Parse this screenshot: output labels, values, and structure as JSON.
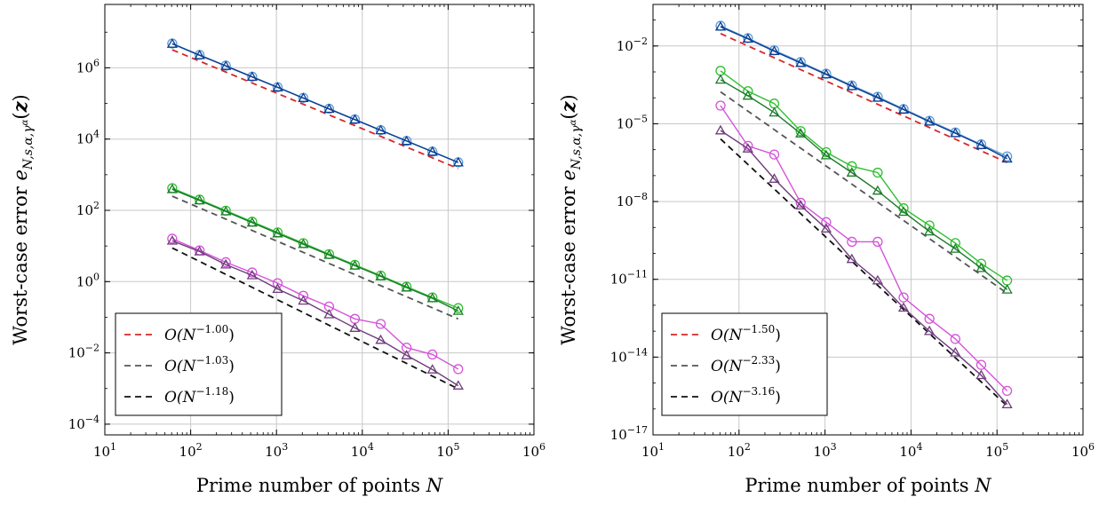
{
  "chart_data": [
    {
      "type": "line",
      "xlabel": "Prime number of points N",
      "ylabel": "Worst-case error e_{N,s,α,γ^α}(z)",
      "x_scale": "log",
      "y_scale": "log",
      "xlim": [
        10,
        1000000
      ],
      "ylim": [
        5e-05,
        60000000
      ],
      "grid": true,
      "legend_position": "bottom-left",
      "xticks": [
        "10^1",
        "10^2",
        "10^3",
        "10^4",
        "10^5",
        "10^6"
      ],
      "yticks": [
        "10^-4",
        "10^-2",
        "10^0",
        "10^2",
        "10^4",
        "10^6"
      ],
      "x": [
        61,
        127,
        257,
        521,
        1031,
        2053,
        4099,
        8191,
        16381,
        32771,
        65537,
        131071
      ],
      "series": [
        {
          "marker": "circle",
          "color": "#5b9bd5",
          "values": [
            4800000,
            2300000,
            1150000,
            565000,
            286000,
            143000,
            71000,
            35700,
            17800,
            8900,
            4450,
            2230
          ]
        },
        {
          "marker": "triangle",
          "color": "#0a3d91",
          "values": [
            4700000,
            2250000,
            1120000,
            555000,
            281000,
            141000,
            70000,
            35200,
            17600,
            8800,
            4400,
            2200
          ]
        },
        {
          "marker": "circle",
          "color": "#2fbf2f",
          "values": [
            420,
            200,
            98,
            48,
            24,
            12,
            5.9,
            2.95,
            1.48,
            0.72,
            0.36,
            0.18
          ]
        },
        {
          "marker": "triangle",
          "color": "#1a7a2a",
          "values": [
            390,
            190,
            93,
            45,
            22.5,
            11.2,
            5.6,
            2.8,
            1.4,
            0.68,
            0.34,
            0.15
          ]
        },
        {
          "marker": "circle",
          "color": "#d453d9",
          "values": [
            16,
            7.5,
            3.5,
            1.8,
            0.9,
            0.4,
            0.2,
            0.09,
            0.065,
            0.014,
            0.009,
            0.0035
          ]
        },
        {
          "marker": "triangle",
          "color": "#6d3d7a",
          "values": [
            14,
            7,
            3,
            1.5,
            0.62,
            0.29,
            0.12,
            0.05,
            0.023,
            0.0085,
            0.0034,
            0.0012
          ]
        }
      ],
      "reference_lines": [
        {
          "label": "O(N^-1.00)",
          "base": "O(N",
          "exp": "−1.00",
          "color": "#d62728",
          "x": [
            61,
            131071
          ],
          "values": [
            3200000,
            1490
          ]
        },
        {
          "label": "O(N^-1.03)",
          "base": "O(N",
          "exp": "−1.03",
          "color": "#555555",
          "x": [
            61,
            131071
          ],
          "values": [
            250,
            0.09
          ]
        },
        {
          "label": "O(N^-1.18)",
          "base": "O(N",
          "exp": "−1.18",
          "color": "#111111",
          "x": [
            61,
            131071
          ],
          "values": [
            8.8,
            0.00098
          ]
        }
      ]
    },
    {
      "type": "line",
      "xlabel": "Prime number of points N",
      "ylabel": "Worst-case error e_{N,s,α,γ^α}(z)",
      "x_scale": "log",
      "y_scale": "log",
      "xlim": [
        10,
        1000000
      ],
      "ylim": [
        1e-17,
        0.4
      ],
      "grid": true,
      "legend_position": "bottom-left",
      "xticks": [
        "10^1",
        "10^2",
        "10^3",
        "10^4",
        "10^5",
        "10^6"
      ],
      "yticks": [
        "10^-17",
        "10^-14",
        "10^-11",
        "10^-8",
        "10^-5",
        "10^-2"
      ],
      "x": [
        61,
        127,
        257,
        521,
        1031,
        2053,
        4099,
        8191,
        16381,
        32771,
        65537,
        131071
      ],
      "series": [
        {
          "marker": "circle",
          "color": "#5b9bd5",
          "values": [
            0.06,
            0.02,
            0.0068,
            0.0024,
            0.00085,
            0.0003,
            0.00011,
            3.7e-05,
            1.3e-05,
            4.6e-06,
            1.6e-06,
            5.5e-07
          ]
        },
        {
          "marker": "triangle",
          "color": "#0a3d91",
          "values": [
            0.055,
            0.019,
            0.0063,
            0.0022,
            0.0008,
            0.00028,
            0.0001,
            3.5e-05,
            1.2e-05,
            4.3e-06,
            1.5e-06,
            4.5e-07
          ]
        },
        {
          "marker": "circle",
          "color": "#2fbf2f",
          "values": [
            0.0011,
            0.00018,
            6e-05,
            5.2e-06,
            8e-07,
            2.3e-07,
            1.3e-07,
            5.5e-09,
            1.2e-09,
            2.5e-10,
            4e-11,
            9e-12
          ]
        },
        {
          "marker": "triangle",
          "color": "#1a7a2a",
          "values": [
            0.0005,
            0.00012,
            2.7e-05,
            4.2e-06,
            6e-07,
            1.3e-07,
            2.6e-08,
            4e-09,
            7e-10,
            1.5e-10,
            2.7e-11,
            4e-12
          ]
        },
        {
          "marker": "circle",
          "color": "#d453d9",
          "values": [
            5e-05,
            1.4e-06,
            6.5e-07,
            9e-09,
            1.6e-09,
            2.8e-10,
            2.8e-10,
            2e-12,
            3e-13,
            5e-14,
            5e-15,
            5e-16
          ]
        },
        {
          "marker": "triangle",
          "color": "#6d3d7a",
          "values": [
            5.5e-06,
            1.1e-06,
            7.5e-08,
            7e-09,
            9e-10,
            6e-11,
            9e-12,
            8e-13,
            1e-13,
            1.5e-14,
            2e-15,
            1.5e-16
          ]
        }
      ],
      "reference_lines": [
        {
          "label": "O(N^-1.50)",
          "base": "O(N",
          "exp": "−1.50",
          "color": "#d62728",
          "x": [
            61,
            131071
          ],
          "values": [
            0.03,
            3.2e-07
          ]
        },
        {
          "label": "O(N^-2.33)",
          "base": "O(N",
          "exp": "−2.33",
          "color": "#555555",
          "x": [
            61,
            131071
          ],
          "values": [
            0.00017,
            2.9e-12
          ]
        },
        {
          "label": "O(N^-3.16)",
          "base": "O(N",
          "exp": "−3.16",
          "color": "#111111",
          "x": [
            61,
            131071
          ],
          "values": [
            2.6e-06,
            1.3e-16
          ]
        }
      ]
    }
  ]
}
